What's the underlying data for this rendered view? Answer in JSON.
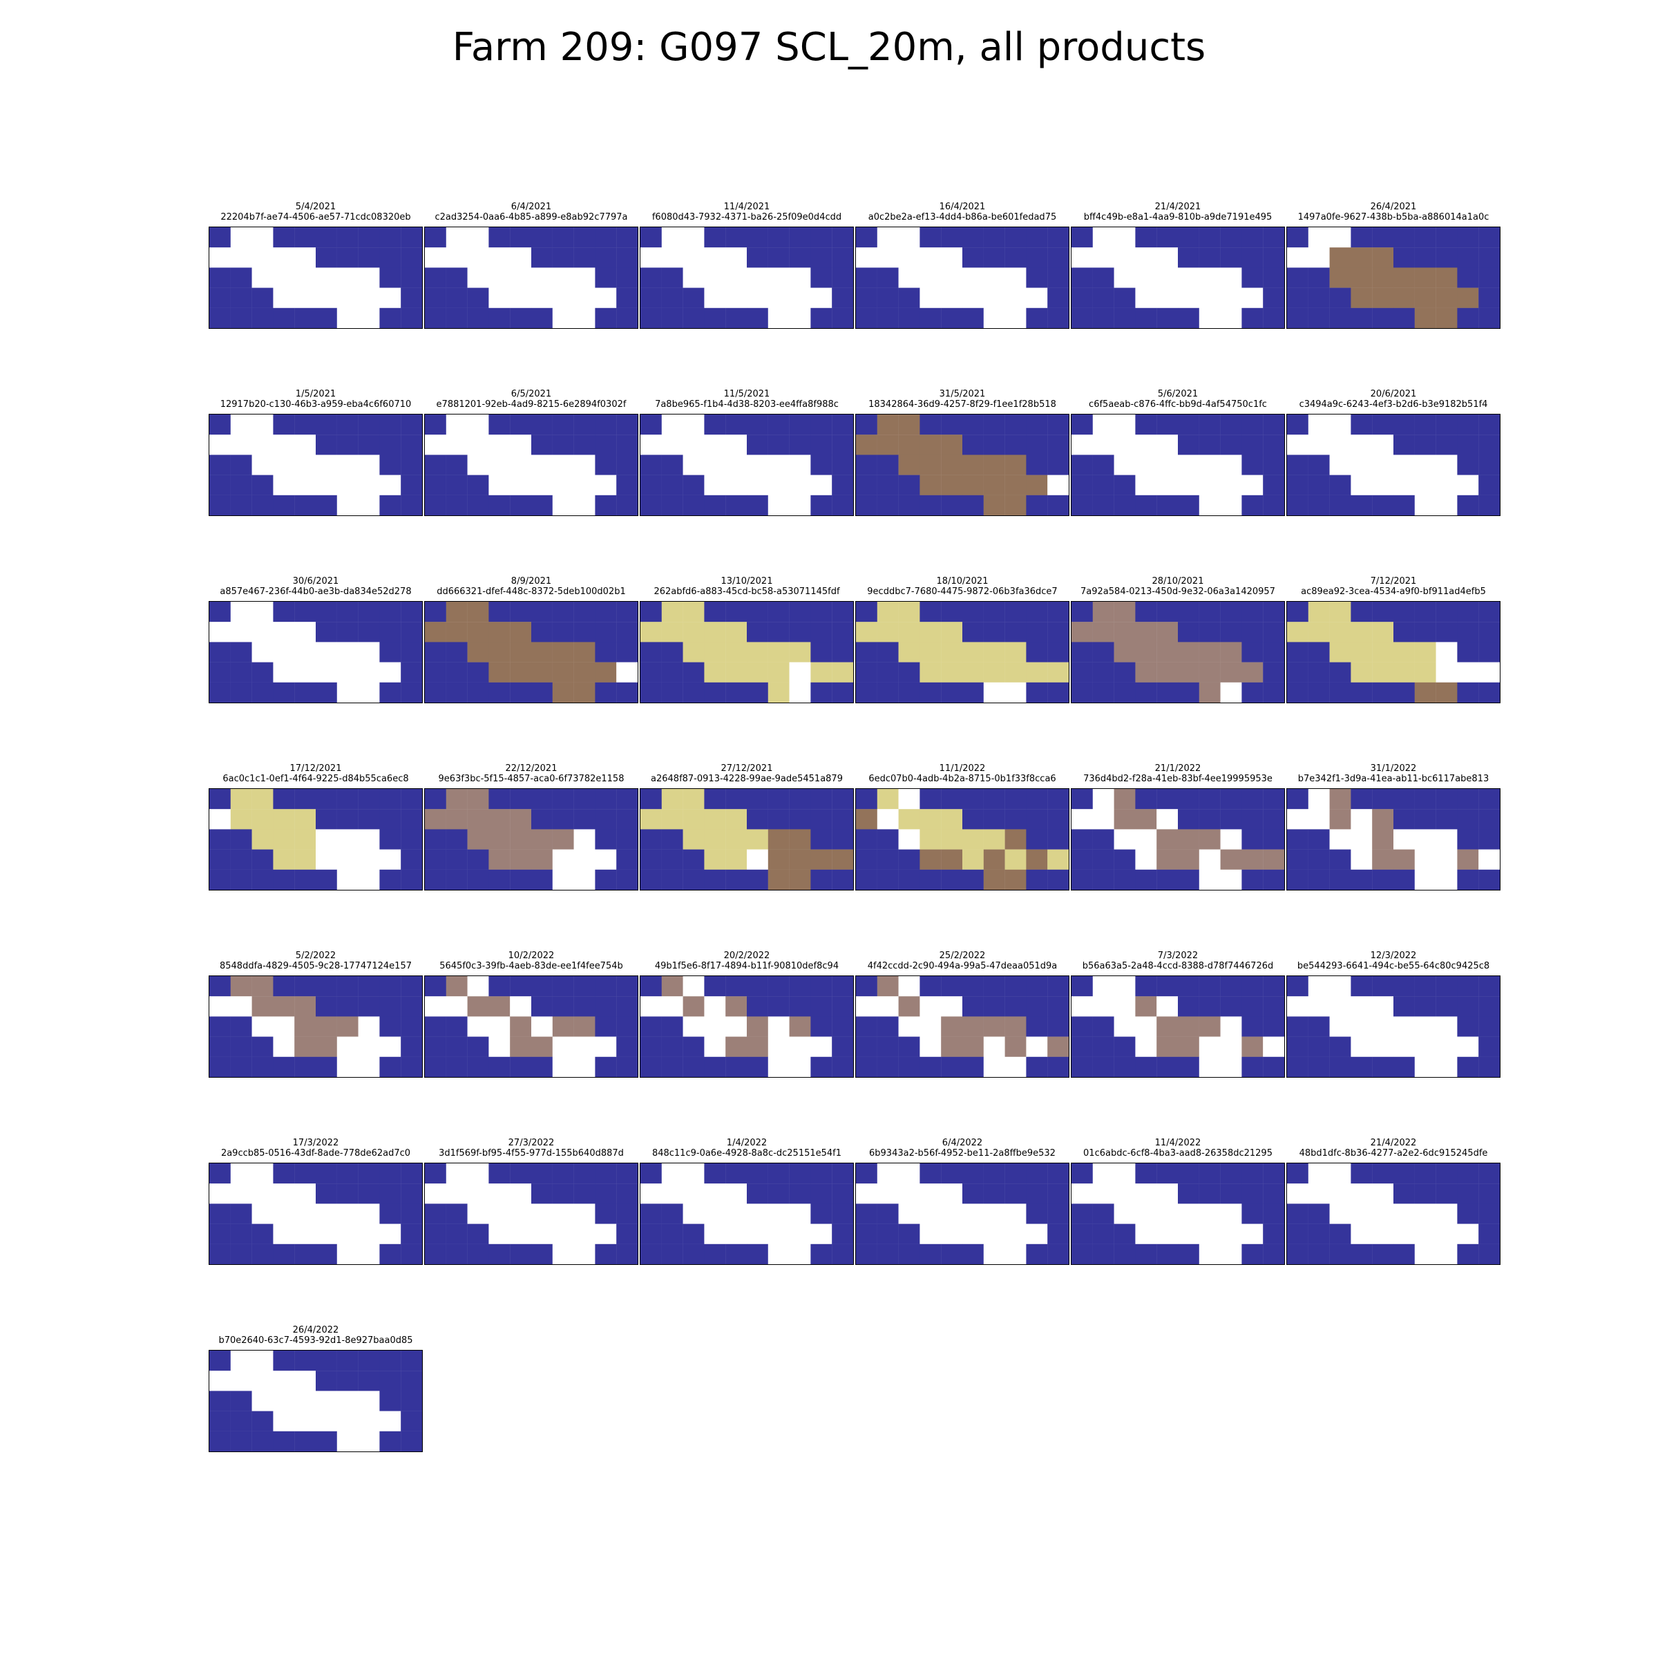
{
  "title": "Farm 209: G097 SCL_20m, all products",
  "colors": {
    "no_data": "#35349b",
    "field": "#ffffff",
    "brown": "#93735a",
    "khaki": "#dbd38b",
    "mauve": "#9c8078"
  },
  "chart_data": {
    "type": "heatmap",
    "grid": {
      "rows": 5,
      "cols": 10
    },
    "legend": "none",
    "codes": {
      "N": "no_data",
      "W": "field",
      "B": "brown",
      "K": "khaki",
      "M": "mauve"
    },
    "panels": [
      {
        "date": "5/4/2021",
        "id": "22204b7f-ae74-4506-ae57-71cdc08320eb",
        "cells": [
          "NWWNNNNNNN",
          "WWWWWNNNNN",
          "NNWWWWWWNN",
          "NNNWWWWWWN",
          "NNNNNNWWNN"
        ]
      },
      {
        "date": "6/4/2021",
        "id": "c2ad3254-0aa6-4b85-a899-e8ab92c7797a",
        "cells": [
          "NWWNNNNNNN",
          "WWWWWNNNNN",
          "NNWWWWWWNN",
          "NNNWWWWWWN",
          "NNNNNNWWNN"
        ]
      },
      {
        "date": "11/4/2021",
        "id": "f6080d43-7932-4371-ba26-25f09e0d4cdd",
        "cells": [
          "NWWNNNNNNN",
          "WWWWWNNNNN",
          "NNWWWWWWNN",
          "NNNWWWWWWN",
          "NNNNNNWWNN"
        ]
      },
      {
        "date": "16/4/2021",
        "id": "a0c2be2a-ef13-4dd4-b86a-be601fedad75",
        "cells": [
          "NWWNNNNNNN",
          "WWWWWNNNNN",
          "NNWWWWWWNN",
          "NNNWWWWWWN",
          "NNNNNNWWNN"
        ]
      },
      {
        "date": "21/4/2021",
        "id": "bff4c49b-e8a1-4aa9-810b-a9de7191e495",
        "cells": [
          "NWWNNNNNNN",
          "WWWWWNNNNN",
          "NNWWWWWWNN",
          "NNNWWWWWWN",
          "NNNNNNWWNN"
        ]
      },
      {
        "date": "26/4/2021",
        "id": "1497a0fe-9627-438b-b5ba-a886014a1a0c",
        "cells": [
          "NWWNNNNNNN",
          "WWBBBNNNNN",
          "NNBBBBBBNN",
          "NNNBBBBBBN",
          "NNNNNNBBNN"
        ]
      },
      {
        "date": "1/5/2021",
        "id": "12917b20-c130-46b3-a959-eba4c6f60710",
        "cells": [
          "NWWNNNNNNN",
          "WWWWWNNNNN",
          "NNWWWWWWNN",
          "NNNWWWWWWN",
          "NNNNNNWWNN"
        ]
      },
      {
        "date": "6/5/2021",
        "id": "e7881201-92eb-4ad9-8215-6e2894f0302f",
        "cells": [
          "NWWNNNNNNN",
          "WWWWWNNNNN",
          "NNWWWWWWNN",
          "NNNWWWWWWN",
          "NNNNNNWWNN"
        ]
      },
      {
        "date": "11/5/2021",
        "id": "7a8be965-f1b4-4d38-8203-ee4ffa8f988c",
        "cells": [
          "NWWNNNNNNN",
          "WWWWWNNNNN",
          "NNWWWWWWNN",
          "NNNWWWWWWN",
          "NNNNNNWWNN"
        ]
      },
      {
        "date": "31/5/2021",
        "id": "18342864-36d9-4257-8f29-f1ee1f28b518",
        "cells": [
          "NBBNNNNNNN",
          "BBBBBNNNNN",
          "NNBBBBBBNN",
          "NNNBBBBBBW",
          "NNNNNNBBNN"
        ]
      },
      {
        "date": "5/6/2021",
        "id": "c6f5aeab-c876-4ffc-bb9d-4af54750c1fc",
        "cells": [
          "NWWNNNNNNN",
          "WWWWWNNNNN",
          "NNWWWWWWNN",
          "NNNWWWWWWN",
          "NNNNNNWWNN"
        ]
      },
      {
        "date": "20/6/2021",
        "id": "c3494a9c-6243-4ef3-b2d6-b3e9182b51f4",
        "cells": [
          "NWWNNNNNNN",
          "WWWWWNNNNN",
          "NNWWWWWWNN",
          "NNNWWWWWWN",
          "NNNNNNWWNN"
        ]
      },
      {
        "date": "30/6/2021",
        "id": "a857e467-236f-44b0-ae3b-da834e52d278",
        "cells": [
          "NWWNNNNNNN",
          "WWWWWNNNNN",
          "NNWWWWWWNN",
          "NNNWWWWWWN",
          "NNNNNNWWNN"
        ]
      },
      {
        "date": "8/9/2021",
        "id": "dd666321-dfef-448c-8372-5deb100d02b1",
        "cells": [
          "NBBNNNNNNN",
          "BBBBBNNNNN",
          "NNBBBBBBNN",
          "NNNBBBBBBW",
          "NNNNNNBBNN"
        ]
      },
      {
        "date": "13/10/2021",
        "id": "262abfd6-a883-45cd-bc58-a53071145fdf",
        "cells": [
          "NKKNNNNNNN",
          "KKKKKNNNNN",
          "NNKKKKKKNN",
          "NNNKKKKWKK",
          "NNNNNNKWNN"
        ]
      },
      {
        "date": "18/10/2021",
        "id": "9ecddbc7-7680-4475-9872-06b3fa36dce7",
        "cells": [
          "NKKNNNNNNN",
          "KKKKKNNNNN",
          "NNKKKKKKNN",
          "NNNKKKKKKK",
          "NNNNNNWWNN"
        ]
      },
      {
        "date": "28/10/2021",
        "id": "7a92a584-0213-450d-9e32-06a3a1420957",
        "cells": [
          "NMMNNNNNNN",
          "MMMMMNNNNN",
          "NNMMMMMMNN",
          "NNNMMMMMMN",
          "NNNNNNMWNN"
        ]
      },
      {
        "date": "7/12/2021",
        "id": "ac89ea92-3cea-4534-a9f0-bf911ad4efb5",
        "cells": [
          "NKKNNNNNNN",
          "KKKKKNNNNN",
          "NNKKKKKWNN",
          "NNNKKKKWWW",
          "NNNNNNBBNN"
        ]
      },
      {
        "date": "17/12/2021",
        "id": "6ac0c1c1-0ef1-4f64-9225-d84b55ca6ec8",
        "cells": [
          "NKKNNNNNNN",
          "WKKKKNNNNN",
          "NNKKKWWWNN",
          "NNNKKWWWWN",
          "NNNNNNWWNN"
        ]
      },
      {
        "date": "22/12/2021",
        "id": "9e63f3bc-5f15-4857-aca0-6f73782e1158",
        "cells": [
          "NMMNNNNNNN",
          "MMMMMNNNNN",
          "NNMMMMMWNN",
          "NNNMMMWWWN",
          "NNNNNNWWNN"
        ]
      },
      {
        "date": "27/12/2021",
        "id": "a2648f87-0913-4228-99ae-9ade5451a879",
        "cells": [
          "NKKNNNNNNN",
          "KKKKKNNNNN",
          "NNKKKKBBNN",
          "NNNKKWBBBB",
          "NNNNNNBBNN"
        ]
      },
      {
        "date": "11/1/2022",
        "id": "6edc07b0-4adb-4b2a-8715-0b1f33f8cca6",
        "cells": [
          "NKWNNNNNNN",
          "BWKKKNNNNN",
          "NNWKKKKBNN",
          "NNNBBKBKBK",
          "NNNNNNBBNN"
        ]
      },
      {
        "date": "21/1/2022",
        "id": "736d4bd2-f28a-41eb-83bf-4ee19995953e",
        "cells": [
          "NWMNNNNNNN",
          "WWMMWNNNNN",
          "NNWWMMMWNN",
          "NNNWMMWMMM",
          "NNNNNNWWNN"
        ]
      },
      {
        "date": "31/1/2022",
        "id": "b7e342f1-3d9a-41ea-ab11-bc6117abe813",
        "cells": [
          "NWMNNNNNNN",
          "WWMWMNNNNN",
          "NNWWMWWWNN",
          "NNNWMMWWMW",
          "NNNNNNWWNN"
        ]
      },
      {
        "date": "5/2/2022",
        "id": "8548ddfa-4829-4505-9c28-17747124e157",
        "cells": [
          "NMMNNNNNNN",
          "WWMMMNNNNN",
          "NNWWMMMWNN",
          "NNNWMMWWWN",
          "NNNNNNWWNN"
        ]
      },
      {
        "date": "10/2/2022",
        "id": "5645f0c3-39fb-4aeb-83de-ee1f4fee754b",
        "cells": [
          "NMWNNNNNNN",
          "WWMMWNNNNN",
          "NNWWMWMMNN",
          "NNNWMMWWWN",
          "NNNNNNWWNN"
        ]
      },
      {
        "date": "20/2/2022",
        "id": "49b1f5e6-8f17-4894-b11f-90810def8c94",
        "cells": [
          "NMWNNNNNNN",
          "WWMWMNNNNN",
          "NNWWWMWMNN",
          "NNNWMMWWWN",
          "NNNNNNWWNN"
        ]
      },
      {
        "date": "25/2/2022",
        "id": "4f42ccdd-2c90-494a-99a5-47deaa051d9a",
        "cells": [
          "NMWNNNNNNN",
          "WWMWWNNNNN",
          "NNWWMMMMNN",
          "NNNWMMWMWM",
          "NNNNNNWWNN"
        ]
      },
      {
        "date": "7/3/2022",
        "id": "b56a63a5-2a48-4ccd-8388-d78f7446726d",
        "cells": [
          "NWWNNNNNNN",
          "WWWMWNNNNN",
          "NNWWMMMWNN",
          "NNNWMMWWMW",
          "NNNNNNWWNN"
        ]
      },
      {
        "date": "12/3/2022",
        "id": "be544293-6641-494c-be55-64c80c9425c8",
        "cells": [
          "NWWNNNNNNN",
          "WWWWWNNNNN",
          "NNWWWWWWNN",
          "NNNWWWWWWN",
          "NNNNNNWWNN"
        ]
      },
      {
        "date": "17/3/2022",
        "id": "2a9ccb85-0516-43df-8ade-778de62ad7c0",
        "cells": [
          "NWWNNNNNNN",
          "WWWWWNNNNN",
          "NNWWWWWWNN",
          "NNNWWWWWWN",
          "NNNNNNWWNN"
        ]
      },
      {
        "date": "27/3/2022",
        "id": "3d1f569f-bf95-4f55-977d-155b640d887d",
        "cells": [
          "NWWNNNNNNN",
          "WWWWWNNNNN",
          "NNWWWWWWNN",
          "NNNWWWWWWN",
          "NNNNNNWWNN"
        ]
      },
      {
        "date": "1/4/2022",
        "id": "848c11c9-0a6e-4928-8a8c-dc25151e54f1",
        "cells": [
          "NWWNNNNNNN",
          "WWWWWNNNNN",
          "NNWWWWWWNN",
          "NNNWWWWWWN",
          "NNNNNNWWNN"
        ]
      },
      {
        "date": "6/4/2022",
        "id": "6b9343a2-b56f-4952-be11-2a8ffbe9e532",
        "cells": [
          "NWWNNNNNNN",
          "WWWWWNNNNN",
          "NNWWWWWWNN",
          "NNNWWWWWWN",
          "NNNNNNWWNN"
        ]
      },
      {
        "date": "11/4/2022",
        "id": "01c6abdc-6cf8-4ba3-aad8-26358dc21295",
        "cells": [
          "NWWNNNNNNN",
          "WWWWWNNNNN",
          "NNWWWWWWNN",
          "NNNWWWWWWN",
          "NNNNNNWWNN"
        ]
      },
      {
        "date": "21/4/2022",
        "id": "48bd1dfc-8b36-4277-a2e2-6dc915245dfe",
        "cells": [
          "NWWNNNNNNN",
          "WWWWWNNNNN",
          "NNWWWWWWNN",
          "NNNWWWWWWN",
          "NNNNNNWWNN"
        ]
      },
      {
        "date": "26/4/2022",
        "id": "b70e2640-63c7-4593-92d1-8e927baa0d85",
        "cells": [
          "NWWNNNNNNN",
          "WWWWWNNNNN",
          "NNWWWWWWNN",
          "NNNWWWWWWN",
          "NNNNNNWWNN"
        ]
      }
    ]
  }
}
